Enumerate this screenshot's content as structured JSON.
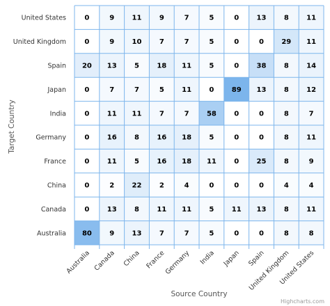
{
  "chart_data": {
    "type": "heatmap",
    "x_categories": [
      "Australia",
      "Canada",
      "China",
      "France",
      "Germany",
      "India",
      "Japan",
      "Spain",
      "United Kingdom",
      "United States"
    ],
    "y_categories": [
      "United States",
      "United Kingdom",
      "Spain",
      "Japan",
      "India",
      "Germany",
      "France",
      "China",
      "Canada",
      "Australia"
    ],
    "values": [
      [
        0,
        9,
        11,
        9,
        7,
        5,
        0,
        13,
        8,
        11
      ],
      [
        0,
        9,
        10,
        7,
        7,
        5,
        0,
        0,
        29,
        11
      ],
      [
        20,
        13,
        5,
        18,
        11,
        5,
        0,
        38,
        8,
        14
      ],
      [
        0,
        7,
        7,
        5,
        11,
        0,
        89,
        13,
        8,
        12
      ],
      [
        0,
        11,
        11,
        7,
        7,
        58,
        0,
        0,
        8,
        7
      ],
      [
        0,
        16,
        8,
        16,
        18,
        5,
        0,
        0,
        8,
        11
      ],
      [
        0,
        11,
        5,
        16,
        18,
        11,
        0,
        25,
        8,
        9
      ],
      [
        0,
        2,
        22,
        2,
        4,
        0,
        0,
        0,
        4,
        4
      ],
      [
        0,
        13,
        8,
        11,
        11,
        5,
        11,
        13,
        8,
        11
      ],
      [
        80,
        9,
        13,
        7,
        7,
        5,
        0,
        0,
        8,
        8
      ]
    ],
    "xlabel": "Source Country",
    "ylabel": "Target Country",
    "color_min": "#ffffff",
    "color_max": "#7cb5ec",
    "value_range": [
      0,
      89
    ],
    "grid": true,
    "legend": "none"
  },
  "credits": "Highcharts.com"
}
